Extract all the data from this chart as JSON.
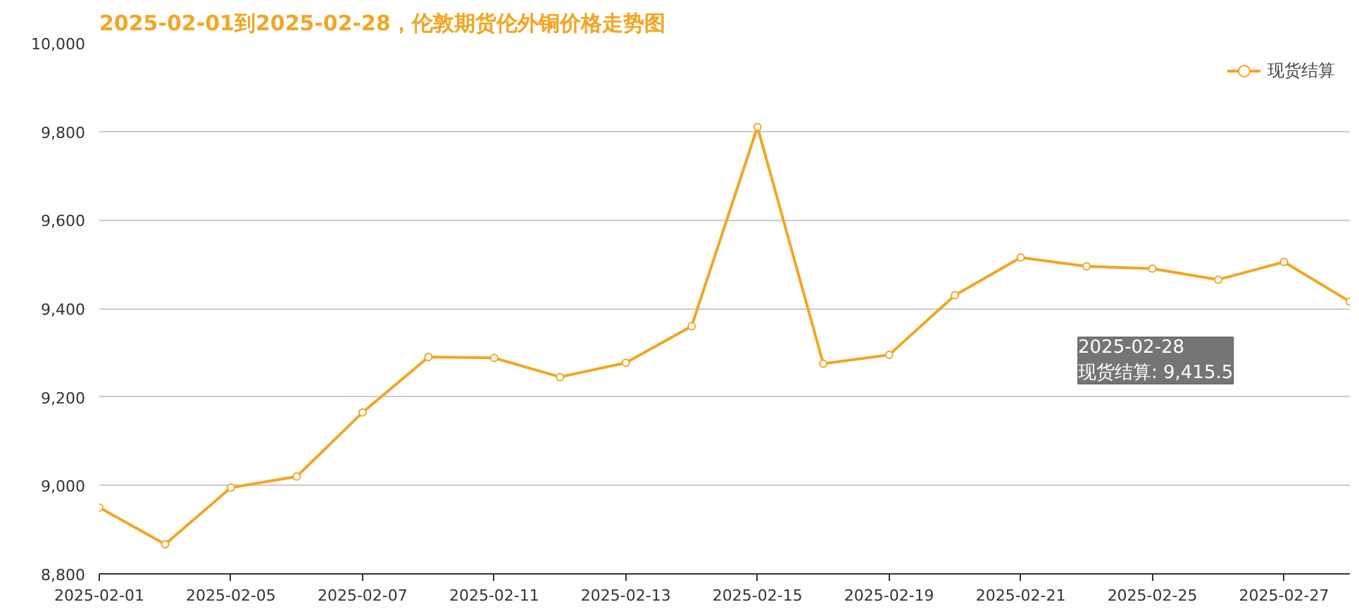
{
  "chart_data": {
    "type": "line",
    "title": "2025-02-01到2025-02-28，伦敦期货伦外铜价格走势图",
    "categories": [
      "2025-02-01",
      null,
      "2025-02-05",
      null,
      "2025-02-07",
      null,
      "2025-02-11",
      null,
      "2025-02-13",
      null,
      "2025-02-15",
      null,
      "2025-02-19",
      null,
      "2025-02-21",
      null,
      "2025-02-25",
      null,
      "2025-02-27",
      null
    ],
    "series": [
      {
        "name": "现货结算",
        "color": "#f2a623",
        "values": [
          8950,
          8867,
          8995,
          9020,
          9165,
          9290,
          9288,
          9245,
          9277,
          9360,
          9810,
          9275,
          9295,
          9430,
          9515,
          9495,
          9490,
          9465,
          9505,
          9415.5
        ]
      }
    ],
    "ylim": [
      8800,
      10000
    ],
    "yticks": [
      {
        "value": 8800,
        "label": "8,800"
      },
      {
        "value": 9000,
        "label": "9,000"
      },
      {
        "value": 9200,
        "label": "9,200"
      },
      {
        "value": 9400,
        "label": "9,400"
      },
      {
        "value": 9600,
        "label": "9,600"
      },
      {
        "value": 9800,
        "label": "9,800"
      },
      {
        "value": 10000,
        "label": "10,000"
      }
    ],
    "grid": "y",
    "legend": "top right",
    "marker": "circle",
    "line_style": "solid",
    "annotations": [
      "2025-02-28\n现货结算: 9,415.5"
    ]
  }
}
